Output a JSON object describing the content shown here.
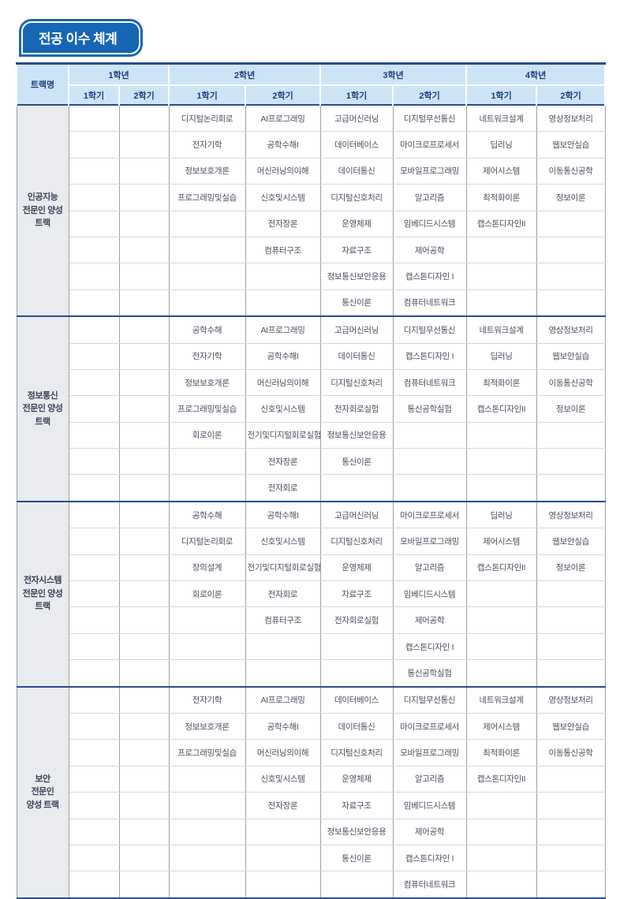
{
  "page": {
    "title": "전공 이수 체계"
  },
  "colors": {
    "accent_blue": "#1766b4",
    "header_bg": "#cde4f6",
    "header_text": "#1c3c7a",
    "track_cell_bg": "#e9ebef",
    "group_divider": "#2b4c8c",
    "course_text": "#4b4f60"
  },
  "table": {
    "track_column_header": "트랙명",
    "year_headers": [
      {
        "label": "1학년",
        "semesters": [
          "1학기",
          "2학기"
        ]
      },
      {
        "label": "2학년",
        "semesters": [
          "1학기",
          "2학기"
        ]
      },
      {
        "label": "3학년",
        "semesters": [
          "1학기",
          "2학기"
        ]
      },
      {
        "label": "4학년",
        "semesters": [
          "1학기",
          "2학기"
        ]
      }
    ],
    "tracks": [
      {
        "name_lines": [
          "인공지능",
          "전문인 양성",
          "트랙"
        ],
        "columns": {
          "y1s1": [],
          "y1s2": [],
          "y2s1": [
            "디지털논리회로",
            "전자기학",
            "정보보호개론",
            "프로그래밍및실습"
          ],
          "y2s2": [
            "AI프로그래밍",
            "공학수해I",
            "머신러닝의이해",
            "신호및시스템",
            "전자장론",
            "컴퓨터구조"
          ],
          "y3s1": [
            "고급머신러닝",
            "데이터베이스",
            "데이터통신",
            "디지털신호처리",
            "운영체제",
            "자료구조",
            "정보통신보안응용",
            "통신이론"
          ],
          "y3s2": [
            "디지털무선통신",
            "마이크로프로세서",
            "모바일프로그래밍",
            "알고리즘",
            "임베디드시스템",
            "제어공학",
            "캡스톤디자인 I",
            "컴퓨터네트워크"
          ],
          "y4s1": [
            "네트워크설계",
            "딥러닝",
            "제어시스템",
            "최적화이론",
            "캡스톤디자인II"
          ],
          "y4s2": [
            "영상정보처리",
            "웹보안실습",
            "이동통신공학",
            "정보이론"
          ]
        }
      },
      {
        "name_lines": [
          "정보통신",
          "전문인 양성",
          "트랙"
        ],
        "columns": {
          "y1s1": [],
          "y1s2": [],
          "y2s1": [
            "공학수해",
            "전자기학",
            "정보보호개론",
            "프로그래밍및실습",
            "회로이론"
          ],
          "y2s2": [
            "AI프로그래밍",
            "공학수해I",
            "머신러닝의이해",
            "신호및시스템",
            "전기및디지털회로실험",
            "전자장론",
            "전자회로"
          ],
          "y3s1": [
            "고급머신러닝",
            "데이터통신",
            "디지털신호처리",
            "전자회로실험",
            "정보통신보안응용",
            "통신이론"
          ],
          "y3s2": [
            "디지털무선통신",
            "캡스톤디자인 I",
            "컴퓨터네트워크",
            "통신공학실험"
          ],
          "y4s1": [
            "네트워크설계",
            "딥러닝",
            "최적화이론",
            "캡스톤디자인II"
          ],
          "y4s2": [
            "영상정보처리",
            "웹보안실습",
            "이동통신공학",
            "정보이론"
          ]
        }
      },
      {
        "name_lines": [
          "전자시스템",
          "전문인 양성",
          "트랙"
        ],
        "columns": {
          "y1s1": [],
          "y1s2": [],
          "y2s1": [
            "공학수해",
            "디지털논리회로",
            "창의설계",
            "회로이론"
          ],
          "y2s2": [
            "공학수해I",
            "신호및시스템",
            "전기및디지털회로실험",
            "전자회로",
            "컴퓨터구조"
          ],
          "y3s1": [
            "고급머신러닝",
            "디지털신호처리",
            "운영체제",
            "자료구조",
            "전자회로실험"
          ],
          "y3s2": [
            "마이크로프로세서",
            "모바일프로그래밍",
            "알고리즘",
            "임베디드시스템",
            "제어공학",
            "캡스톤디자인 I",
            "통신공학실험"
          ],
          "y4s1": [
            "딥러닝",
            "제어시스템",
            "캡스톤디자인II"
          ],
          "y4s2": [
            "영상정보처리",
            "웹보안실습",
            "정보이론"
          ]
        }
      },
      {
        "name_lines": [
          "보안",
          "전문인",
          "양성 트랙"
        ],
        "columns": {
          "y1s1": [],
          "y1s2": [],
          "y2s1": [
            "전자기학",
            "정보보호개론",
            "프로그래밍및실습"
          ],
          "y2s2": [
            "AI프로그래밍",
            "공학수해I",
            "머신러닝의이해",
            "신호및시스템",
            "전자장론"
          ],
          "y3s1": [
            "데이터베이스",
            "데이터통신",
            "디지털신호처리",
            "운영체제",
            "자료구조",
            "정보통신보안응용",
            "통신이론"
          ],
          "y3s2": [
            "디지털무선통신",
            "마이크로프로세서",
            "모바일프로그래밍",
            "알고리즘",
            "임베디드시스템",
            "제어공학",
            "캡스톤디자인 I",
            "컴퓨터네트워크"
          ],
          "y4s1": [
            "네트워크설계",
            "제어시스템",
            "최적화이론",
            "캡스톤디자인II"
          ],
          "y4s2": [
            "영상정보처리",
            "웹보안실습",
            "이동통신공학"
          ]
        }
      }
    ]
  }
}
